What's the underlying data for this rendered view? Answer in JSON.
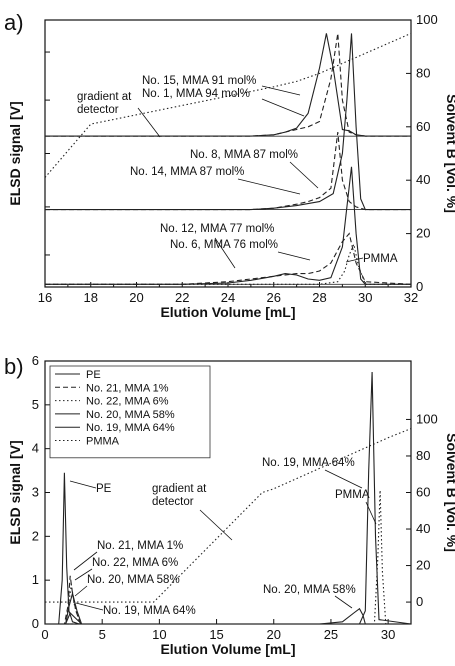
{
  "chart_data": [
    {
      "type": "line",
      "panel_label": "a)",
      "xlabel": "Elution Volume [mL]",
      "ylabel": "ELSD signal [V]",
      "y2label": "Solvent B [Vol. %]",
      "xlim": [
        16,
        32
      ],
      "y2lim": [
        0,
        100
      ],
      "xticks": [
        "16",
        "18",
        "20",
        "22",
        "24",
        "26",
        "28",
        "30",
        "32"
      ],
      "y2ticks": [
        "0",
        "20",
        "40",
        "60",
        "80",
        "100"
      ],
      "grid": false,
      "series": [
        {
          "name": "No. 15, MMA 91 mol%",
          "style": "solid",
          "baseline": 56.5,
          "x": [
            16,
            25,
            26,
            26.5,
            27,
            27.5,
            28,
            28.3,
            28.6,
            29,
            29.3,
            29.6,
            30,
            32
          ],
          "y": [
            56.5,
            56.5,
            57,
            58,
            59.5,
            65,
            82,
            95,
            82,
            59,
            58.5,
            57,
            56.5,
            56.5
          ]
        },
        {
          "name": "No. 1, MMA 94 mol%",
          "style": "dashed",
          "baseline": 56.5,
          "x": [
            16,
            25,
            26,
            27,
            27.5,
            28,
            28.5,
            28.8,
            29,
            29.3,
            29.6,
            30,
            32
          ],
          "y": [
            56.5,
            56.5,
            57,
            59,
            60,
            62,
            78,
            95,
            70,
            58,
            57,
            56.5,
            56.5
          ]
        },
        {
          "name": "No. 8, MMA 87 mol%",
          "style": "dashed",
          "baseline": 29,
          "x": [
            16,
            25,
            26,
            27,
            27.5,
            28,
            28.5,
            28.8,
            29,
            29.3,
            29.6,
            30,
            32
          ],
          "y": [
            29,
            29,
            29.5,
            31,
            32,
            33.5,
            37,
            58,
            40,
            32,
            30,
            29,
            29
          ]
        },
        {
          "name": "No. 14, MMA 87 mol%",
          "style": "solid",
          "baseline": 29,
          "x": [
            16,
            25,
            26,
            27,
            28,
            28.6,
            29,
            29.2,
            29.4,
            29.6,
            29.8,
            30,
            32
          ],
          "y": [
            29,
            29,
            29.5,
            30.5,
            32,
            35,
            50,
            70,
            95,
            60,
            33,
            29,
            29
          ]
        },
        {
          "name": "No. 12, MMA 77 mol%",
          "style": "solid",
          "baseline": 1,
          "x": [
            16,
            22,
            24,
            25,
            26,
            26.5,
            27,
            27.5,
            28,
            28.5,
            29,
            29.2,
            29.4,
            29.6,
            29.8,
            30,
            32
          ],
          "y": [
            1,
            1,
            1.5,
            2.5,
            4,
            5,
            4.5,
            3,
            2.5,
            3.5,
            15,
            30,
            45,
            20,
            3,
            1,
            1
          ]
        },
        {
          "name": "No. 6, MMA 76 mol%",
          "style": "dashed",
          "baseline": 1,
          "x": [
            16,
            22,
            24,
            25,
            26,
            27,
            27.5,
            28,
            28.5,
            29,
            29.3,
            29.6,
            30,
            32
          ],
          "y": [
            1,
            1,
            2,
            3,
            4,
            5,
            5,
            6,
            9,
            17,
            20,
            9,
            2,
            1
          ]
        },
        {
          "name": "PMMA",
          "style": "dotted",
          "baseline": 1,
          "x": [
            16,
            28,
            28.8,
            29.1,
            29.3,
            29.5,
            29.7,
            30,
            32
          ],
          "y": [
            1,
            1,
            2,
            6,
            12,
            16,
            8,
            1,
            1
          ]
        },
        {
          "name": "gradient at detector",
          "style": "dotted",
          "axis": "y2",
          "x": [
            16,
            18,
            26,
            27,
            28,
            32
          ],
          "y": [
            41,
            61,
            75,
            77,
            80,
            95
          ]
        }
      ],
      "annotations": [
        "gradient at\ndetector",
        "No. 15, MMA 91 mol%",
        "No. 1, MMA 94 mol%",
        "No. 8, MMA 87 mol%",
        "No. 14, MMA 87 mol%",
        "No. 12, MMA 77 mol%",
        "No. 6, MMA 76 mol%",
        "PMMA"
      ]
    },
    {
      "type": "line",
      "panel_label": "b)",
      "xlabel": "Elution Volume [mL]",
      "ylabel": "ELSD signal [V]",
      "y2label": "Solvent B [Vol. %]",
      "xlim": [
        0,
        32
      ],
      "ylim": [
        0,
        6
      ],
      "xticks": [
        "0",
        "5",
        "10",
        "15",
        "20",
        "25",
        "30"
      ],
      "yticks": [
        "0",
        "1",
        "2",
        "3",
        "4",
        "5",
        "6"
      ],
      "y2ticks": [
        "0",
        "20",
        "40",
        "60",
        "80",
        "100"
      ],
      "grid": false,
      "legend": "top-left",
      "series": [
        {
          "name": "PE",
          "style": "solid",
          "x": [
            0,
            1.2,
            1.5,
            1.7,
            1.9,
            2.1,
            2.4,
            3,
            32
          ],
          "y": [
            0,
            0,
            1,
            3.45,
            1.3,
            0.3,
            0.05,
            0,
            0
          ]
        },
        {
          "name": "No. 21, MMA  1%",
          "style": "dashed",
          "x": [
            0,
            1.7,
            2,
            2.2,
            2.4,
            2.7,
            3.1,
            32
          ],
          "y": [
            0,
            0,
            0.4,
            1.1,
            0.7,
            0.3,
            0,
            0
          ]
        },
        {
          "name": "No. 22, MMA  6%",
          "style": "dotted",
          "x": [
            0,
            1.8,
            2.1,
            2.3,
            2.6,
            3.1,
            32
          ],
          "y": [
            0,
            0,
            0.5,
            0.9,
            0.4,
            0,
            0
          ]
        },
        {
          "name": "No. 20, MMA 58%",
          "style": "solid",
          "x": [
            0,
            1.8,
            2.1,
            2.4,
            2.8,
            3.2,
            24,
            26,
            27,
            27.5,
            27.8,
            28,
            32
          ],
          "y": [
            0,
            0,
            0.4,
            0.7,
            0.3,
            0,
            0,
            0.05,
            0.25,
            0.35,
            0.2,
            0,
            0
          ]
        },
        {
          "name": "No. 19, MMA 64%",
          "style": "solid",
          "x": [
            0,
            1.8,
            2.2,
            2.6,
            3.2,
            27.5,
            28,
            28.3,
            28.6,
            28.9,
            29.2,
            32
          ],
          "y": [
            0,
            0,
            0.25,
            0.15,
            0,
            0,
            0.3,
            3.5,
            5.75,
            2,
            0.1,
            0
          ]
        },
        {
          "name": "PMMA",
          "style": "dotted",
          "x": [
            0,
            28.8,
            29.1,
            29.3,
            29.5,
            29.8,
            32
          ],
          "y": [
            0,
            0,
            1.5,
            3.05,
            1.2,
            0,
            0
          ]
        },
        {
          "name": "gradient at detector",
          "style": "dotted",
          "axis": "y2",
          "x": [
            0,
            9.5,
            19,
            20,
            30,
            32
          ],
          "y": [
            0,
            0,
            60,
            62,
            90,
            95
          ]
        }
      ],
      "annotations": [
        "PE",
        "gradient at\ndetector",
        "No. 19, MMA 64%",
        "PMMA",
        "No. 21, MMA 1%",
        "No. 22, MMA 6%",
        "No. 20, MMA 58%",
        "No. 19, MMA 64%",
        "No. 20, MMA 58%"
      ]
    }
  ]
}
